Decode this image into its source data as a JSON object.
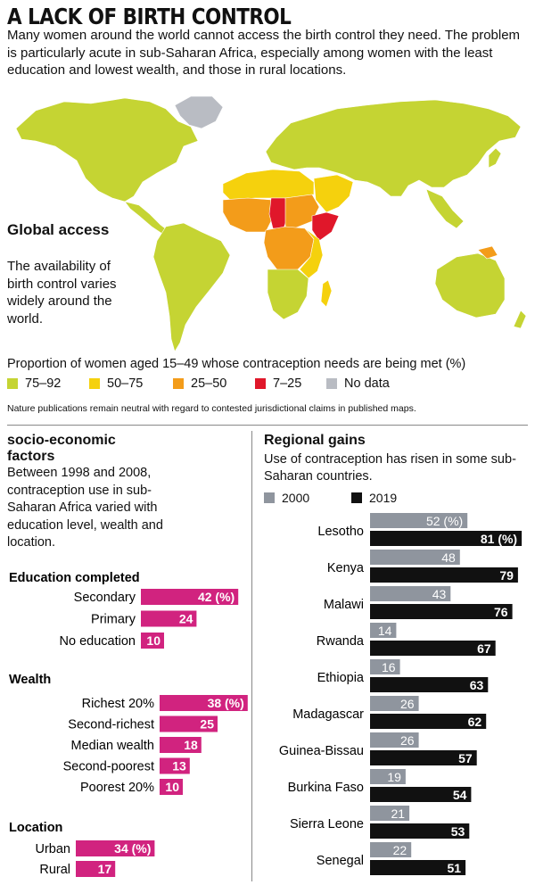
{
  "title": "A LACK OF BIRTH CONTROL",
  "intro": "Many women around the world cannot access the birth control they need. The problem is particularly acute in sub-Saharan Africa, especially among women with the least education and lowest wealth, and those in rural locations.",
  "global_access": {
    "title": "Global access",
    "text": "The availability of birth control varies widely around the world."
  },
  "map_caption": "Proportion of women aged 15–49 whose contraception needs are being met (%)",
  "map_legend": [
    {
      "label": "75–92",
      "color": "#c5d433"
    },
    {
      "label": "50–75",
      "color": "#f5d10d"
    },
    {
      "label": "25–50",
      "color": "#f39c1a"
    },
    {
      "label": "7–25",
      "color": "#e0172a"
    },
    {
      "label": "No data",
      "color": "#b9bcc3"
    }
  ],
  "map_note": "Nature publications remain neutral with regard to contested jurisdictional claims in published maps.",
  "socio": {
    "title": "socio-economic factors",
    "text": "Between 1998 and 2008, contraception use in sub-Saharan Africa varied with education level, wealth and location."
  },
  "regional": {
    "title": "Regional gains",
    "text": "Use of contraception has risen in some sub-Saharan countries.",
    "legend_2000": "2000",
    "legend_2019": "2019"
  },
  "chart_data": [
    {
      "type": "bar",
      "title": "Education completed",
      "categories": [
        "Secondary",
        "Primary",
        "No education"
      ],
      "values": [
        42,
        24,
        10
      ],
      "value_labels": [
        "42 (%)",
        "24",
        "10"
      ],
      "color": "#d1237f"
    },
    {
      "type": "bar",
      "title": "Wealth",
      "categories": [
        "Richest 20%",
        "Second-richest",
        "Median wealth",
        "Second-poorest",
        "Poorest 20%"
      ],
      "values": [
        38,
        25,
        18,
        13,
        10
      ],
      "value_labels": [
        "38 (%)",
        "25",
        "18",
        "13",
        "10"
      ],
      "color": "#d1237f"
    },
    {
      "type": "bar",
      "title": "Location",
      "categories": [
        "Urban",
        "Rural"
      ],
      "values": [
        34,
        17
      ],
      "value_labels": [
        "34 (%)",
        "17"
      ],
      "color": "#d1237f"
    },
    {
      "type": "bar",
      "title": "Regional gains",
      "categories": [
        "Lesotho",
        "Kenya",
        "Malawi",
        "Rwanda",
        "Ethiopia",
        "Madagascar",
        "Guinea-Bissau",
        "Burkina Faso",
        "Sierra Leone",
        "Senegal"
      ],
      "series": [
        {
          "name": "2000",
          "color": "#8f959e",
          "values": [
            52,
            48,
            43,
            14,
            16,
            26,
            26,
            19,
            21,
            22
          ],
          "value_labels": [
            "52 (%)",
            "48",
            "43",
            "14",
            "16",
            "26",
            "26",
            "19",
            "21",
            "22"
          ]
        },
        {
          "name": "2019",
          "color": "#111111",
          "values": [
            81,
            79,
            76,
            67,
            63,
            62,
            57,
            54,
            53,
            51
          ],
          "value_labels": [
            "81 (%)",
            "79",
            "76",
            "67",
            "63",
            "62",
            "57",
            "54",
            "53",
            "51"
          ]
        }
      ]
    }
  ]
}
